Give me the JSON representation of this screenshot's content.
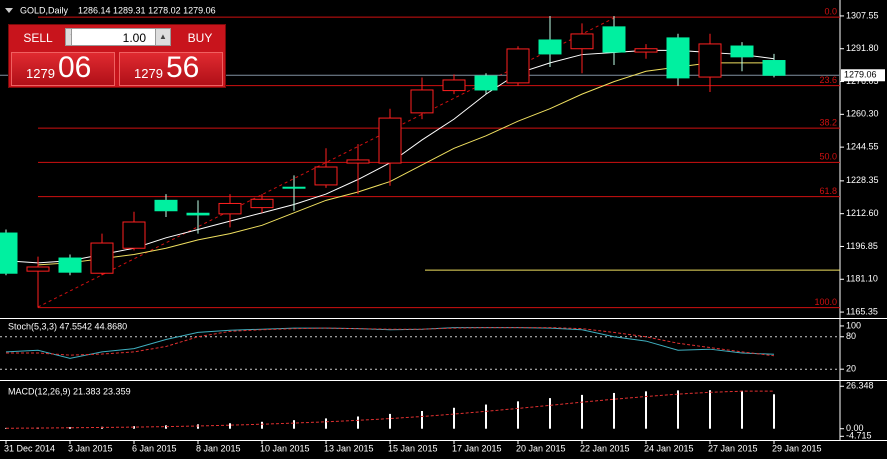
{
  "header": {
    "title": "GOLD,Daily",
    "ohlc": "1286.14 1289.31 1278.02 1279.06"
  },
  "trade_panel": {
    "sell": "SELL",
    "lots": "1.00",
    "buy": "BUY",
    "bid_big": "1279",
    "bid_small": "06",
    "ask_big": "1279",
    "ask_small": "56"
  },
  "chart_data": [
    {
      "type": "candlestick",
      "categories": [
        "31 Dec 2014",
        null,
        "3 Jan 2015",
        null,
        "6 Jan 2015",
        null,
        "8 Jan 2015",
        null,
        "10 Jan 2015",
        null,
        "13 Jan 2015",
        null,
        "15 Jan 2015",
        null,
        "17 Jan 2015",
        null,
        "20 Jan 2015",
        null,
        "22 Jan 2015",
        null,
        "24 Jan 2015",
        null,
        "27 Jan 2015",
        null,
        "29 Jan 2015"
      ],
      "open": [
        1203.3,
        1185,
        1191.3,
        1184,
        1196,
        1219,
        1212.8,
        1212.5,
        1215.5,
        1225.3,
        1226.4,
        1236.9,
        1236.9,
        1261,
        1271.7,
        1278.7,
        1275.4,
        1296,
        1291.8,
        1302.3,
        1290.2,
        1297,
        1278.2,
        1293.1,
        1286.14
      ],
      "high": [
        1205,
        1192,
        1193,
        1203,
        1213.5,
        1222,
        1219,
        1222,
        1222,
        1231,
        1244,
        1246,
        1263,
        1278,
        1279.5,
        1280,
        1293,
        1307.5,
        1304,
        1307.5,
        1294,
        1299,
        1299,
        1295,
        1289.31
      ],
      "low": [
        1183,
        1167.5,
        1183,
        1183,
        1195,
        1211,
        1203,
        1206,
        1213,
        1214,
        1225,
        1222,
        1226,
        1258,
        1270,
        1270,
        1274,
        1283,
        1280,
        1284,
        1287,
        1274,
        1271,
        1281,
        1278.02
      ],
      "close": [
        1184,
        1187,
        1184.5,
        1198.5,
        1208.6,
        1214,
        1212,
        1217.5,
        1219.5,
        1225,
        1235,
        1238.4,
        1258.5,
        1272,
        1276.8,
        1272,
        1291.7,
        1289.3,
        1298.9,
        1290.2,
        1291.8,
        1277.8,
        1294.1,
        1287.9,
        1279.06
      ],
      "up_color": "#000000",
      "up_edge": "#ff2020",
      "down_color": "#00f0a0",
      "down_edge": "#c0ffe8",
      "lines": [
        {
          "color": "#ffffff",
          "values": [
            1190,
            1189,
            1190,
            1193,
            1196,
            1201,
            1205,
            1209,
            1213,
            1217,
            1222,
            1229,
            1237,
            1248,
            1258,
            1270,
            1280,
            1285,
            1289,
            1290,
            1291,
            1291,
            1290,
            1289,
            1287
          ]
        },
        {
          "color": "#f0e060",
          "values": [
            null,
            1188,
            1189,
            1191,
            1193,
            1196,
            1200,
            1203,
            1207,
            1213,
            1219,
            1223,
            1228,
            1236,
            1244,
            1250,
            1257,
            1263,
            1270,
            1276,
            1281,
            1283,
            1285,
            1285,
            1285
          ]
        }
      ],
      "fibo": {
        "color": "#d01010",
        "levels": [
          {
            "label": "0.0",
            "value": 1307
          },
          {
            "label": "23.6",
            "value": 1274.1
          },
          {
            "label": "38.2",
            "value": 1253.7
          },
          {
            "label": "50.0",
            "value": 1237.25
          },
          {
            "label": "61.8",
            "value": 1220.8
          },
          {
            "label": "100.0",
            "value": 1167.5
          }
        ]
      },
      "hline": {
        "value": 1185.5,
        "color": "#f0e060"
      },
      "current_price": 1279.06,
      "ylim": [
        1162.5,
        1315.2
      ],
      "yticks": [
        1307.55,
        {
          "value": 1291.8,
          "label": "1291.80"
        },
        {
          "value": 1276.05,
          "label": "1276.05"
        },
        {
          "value": 1260.3,
          "label": "1260.30"
        },
        1244.55,
        1228.35,
        {
          "value": 1212.6,
          "label": "1212.60"
        },
        1196.85,
        {
          "value": 1181.1,
          "label": "1181.10"
        },
        1165.35
      ]
    },
    {
      "type": "line",
      "title": "Stoch(5,3,3) 47.5542 44.8680",
      "series": [
        {
          "color": "#40b0c0",
          "dash": false,
          "values": [
            52,
            55,
            40,
            52,
            58,
            75,
            88,
            92,
            94,
            96,
            96,
            95,
            93,
            94,
            97,
            97,
            97,
            96,
            93,
            80,
            72,
            55,
            57,
            50,
            47.5542
          ]
        },
        {
          "color": "#e03030",
          "dash": true,
          "values": [
            50,
            50,
            46,
            48,
            52,
            62,
            80,
            90,
            93,
            95,
            96,
            95,
            94,
            94,
            96,
            97,
            97,
            97,
            95,
            88,
            80,
            68,
            60,
            52,
            44.868
          ]
        }
      ],
      "levels": [
        80,
        20
      ],
      "ylim": [
        0,
        111
      ],
      "yticks": [
        100,
        80,
        20
      ]
    },
    {
      "type": "macd",
      "title": "MACD(12,26,9) 21.383 23.359",
      "values": [
        0.5,
        0.7,
        0.9,
        1.2,
        1.6,
        2.1,
        2.7,
        3.4,
        4.3,
        5.3,
        6.4,
        7.6,
        9.2,
        11.0,
        13.0,
        15.0,
        17.0,
        19.0,
        21.0,
        22.2,
        23.2,
        23.8,
        23.9,
        23.5,
        21.383
      ],
      "signal": [
        0.3,
        0.4,
        0.6,
        0.8,
        1.0,
        1.3,
        1.7,
        2.2,
        2.8,
        3.5,
        4.3,
        5.2,
        6.3,
        7.6,
        9.1,
        10.8,
        12.6,
        14.5,
        16.5,
        18.3,
        20.0,
        21.5,
        22.6,
        23.3,
        23.359
      ],
      "color": "#ffffff",
      "signal_color": "#e03030",
      "ylim": [
        -7,
        29
      ],
      "yticks": [
        26.348,
        {
          "value": 0,
          "label": "0.00"
        },
        -4.715
      ]
    }
  ]
}
